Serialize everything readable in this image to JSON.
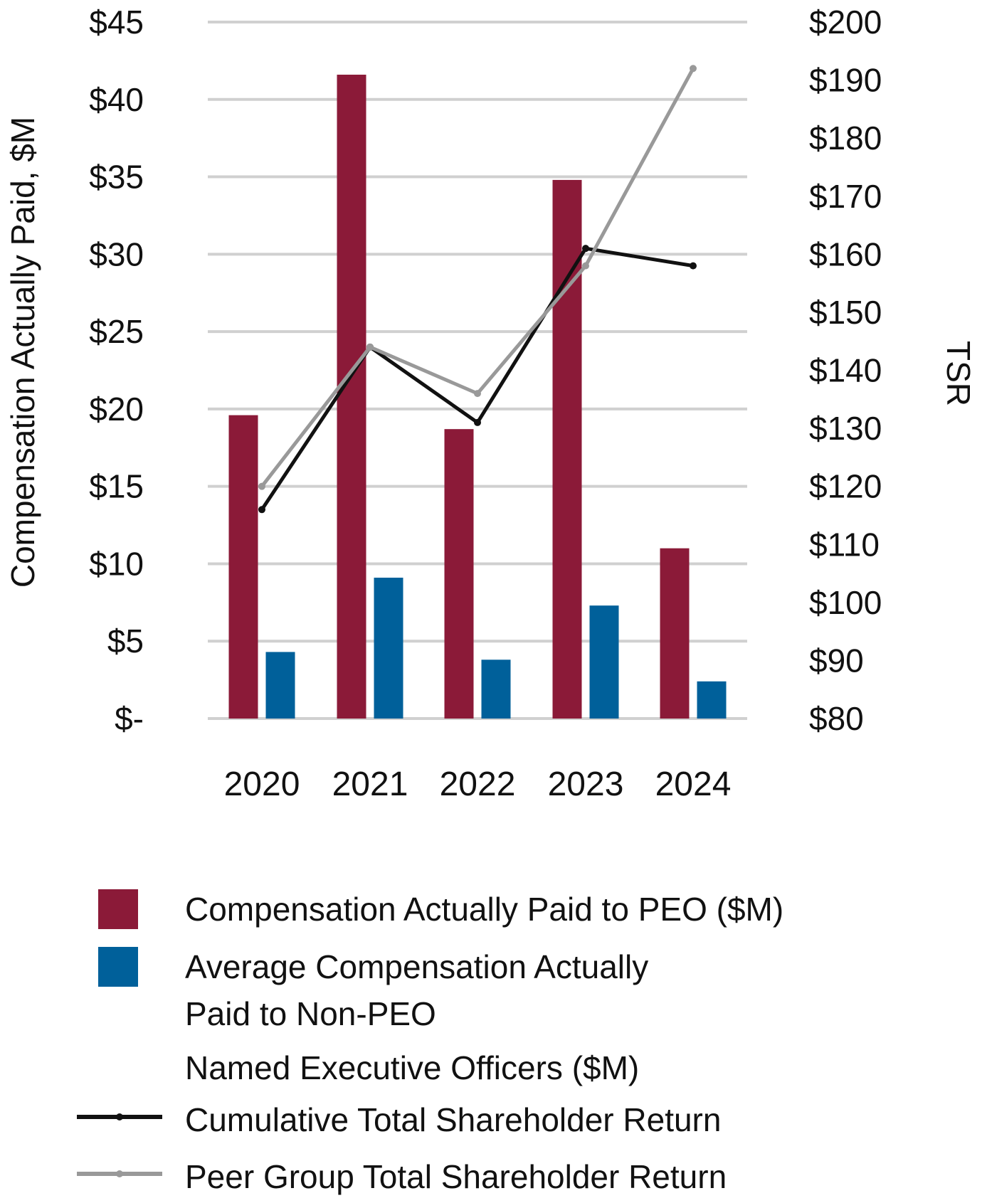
{
  "chart_data": {
    "type": "bar",
    "title": "",
    "categories": [
      "2020",
      "2021",
      "2022",
      "2023",
      "2024"
    ],
    "ylabel_left": "Compensation Actually Paid, $M",
    "ylabel_right": "TSR",
    "xlabel": "",
    "ylim_left": [
      0,
      45
    ],
    "ylim_right": [
      80,
      200
    ],
    "left_tick_values": [
      0,
      5,
      10,
      15,
      20,
      25,
      30,
      35,
      40,
      45
    ],
    "left_tick_labels": [
      "$-",
      "$5",
      "$10",
      "$15",
      "$20",
      "$25",
      "$30",
      "$35",
      "$40",
      "$45"
    ],
    "right_tick_values": [
      80,
      90,
      100,
      110,
      120,
      130,
      140,
      150,
      160,
      170,
      180,
      190,
      200
    ],
    "right_tick_labels": [
      "$80",
      "$90",
      "$100",
      "$110",
      "$120",
      "$130",
      "$140",
      "$150",
      "$160",
      "$170",
      "$180",
      "$190",
      "$200"
    ],
    "grid": true,
    "bar_series": [
      {
        "name": "Compensation Actually Paid to PEO ($M)",
        "values": [
          19.6,
          41.6,
          18.7,
          34.8,
          11.0
        ],
        "color": "#8b1a38",
        "axis": "left"
      },
      {
        "name": "Average Compensation Actually Paid to Non-PEO Named Executive Officers ($M)",
        "values": [
          4.3,
          9.1,
          3.8,
          7.3,
          2.4
        ],
        "color": "#00609a",
        "axis": "left"
      }
    ],
    "line_series": [
      {
        "name": "Cumulative Total Shareholder Return",
        "values": [
          116,
          144,
          131,
          161,
          158
        ],
        "color": "#111111",
        "axis": "right"
      },
      {
        "name": "Peer Group Total Shareholder Return",
        "values": [
          120,
          144,
          136,
          158,
          192
        ],
        "color": "#999999",
        "axis": "right"
      }
    ],
    "legend_placement": "bottom",
    "legend": [
      {
        "kind": "bar",
        "color": "#8b1a38",
        "lines": [
          "Compensation Actually Paid to PEO ($M)"
        ]
      },
      {
        "kind": "bar",
        "color": "#00609a",
        "lines": [
          "Average Compensation Actually",
          "Paid to Non-PEO",
          "Named Executive Officers ($M)"
        ]
      },
      {
        "kind": "line",
        "color": "#111111",
        "lines": [
          "Cumulative Total Shareholder Return"
        ]
      },
      {
        "kind": "line",
        "color": "#999999",
        "lines": [
          "Peer Group Total Shareholder Return"
        ]
      }
    ],
    "grid_color": "#d0d0d0"
  }
}
